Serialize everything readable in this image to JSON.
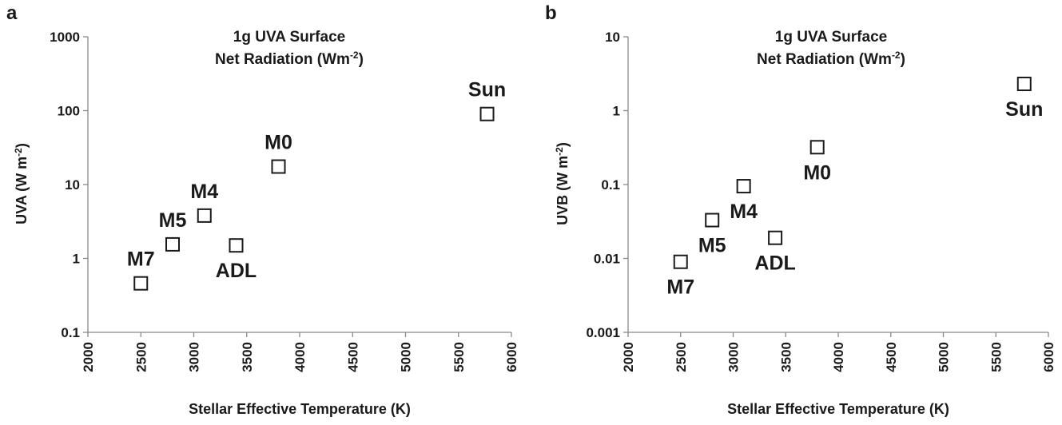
{
  "chart_data": [
    {
      "type": "scatter",
      "panel_letter": "a",
      "title_line1": "1g UVA Surface",
      "title_line2_main": "Net Radiation (Wm",
      "title_line2_sup": "-2",
      "title_line2_end": ")",
      "ylabel_main": "UVA (W m",
      "ylabel_sup": "-2",
      "ylabel_end": ")",
      "xlabel": "Stellar Effective Temperature (K)",
      "xlim": [
        2000,
        6000
      ],
      "ylim": [
        0.1,
        1000
      ],
      "yscale": "log",
      "grid": false,
      "x_ticks": [
        "2000",
        "2500",
        "3000",
        "3500",
        "4000",
        "4500",
        "5000",
        "5500",
        "6000"
      ],
      "y_ticks": [
        "0.1",
        "1",
        "10",
        "100",
        "1000"
      ],
      "points": [
        {
          "label": "M7",
          "x": 2500,
          "y": 0.46,
          "label_pos": "above"
        },
        {
          "label": "M5",
          "x": 2800,
          "y": 1.55,
          "label_pos": "above"
        },
        {
          "label": "M4",
          "x": 3100,
          "y": 3.8,
          "label_pos": "above"
        },
        {
          "label": "ADL",
          "x": 3400,
          "y": 1.5,
          "label_pos": "below"
        },
        {
          "label": "M0",
          "x": 3800,
          "y": 17.5,
          "label_pos": "above"
        },
        {
          "label": "Sun",
          "x": 5770,
          "y": 90,
          "label_pos": "above"
        }
      ]
    },
    {
      "type": "scatter",
      "panel_letter": "b",
      "title_line1": "1g UVA Surface",
      "title_line2_main": "Net Radiation (Wm",
      "title_line2_sup": "-2",
      "title_line2_end": ")",
      "ylabel_main": "UVB (W m",
      "ylabel_sup": "-2",
      "ylabel_end": ")",
      "xlabel": "Stellar Effective Temperature (K)",
      "xlim": [
        2000,
        6000
      ],
      "ylim": [
        0.001,
        10
      ],
      "yscale": "log",
      "grid": false,
      "x_ticks": [
        "2000",
        "2500",
        "3000",
        "3500",
        "4000",
        "4500",
        "5000",
        "5500",
        "6000"
      ],
      "y_ticks": [
        "0.001",
        "0.01",
        "0.1",
        "1",
        "10"
      ],
      "points": [
        {
          "label": "M7",
          "x": 2500,
          "y": 0.009,
          "label_pos": "below"
        },
        {
          "label": "M5",
          "x": 2800,
          "y": 0.033,
          "label_pos": "below"
        },
        {
          "label": "M4",
          "x": 3100,
          "y": 0.095,
          "label_pos": "below"
        },
        {
          "label": "ADL",
          "x": 3400,
          "y": 0.019,
          "label_pos": "below"
        },
        {
          "label": "M0",
          "x": 3800,
          "y": 0.32,
          "label_pos": "below"
        },
        {
          "label": "Sun",
          "x": 5770,
          "y": 2.3,
          "label_pos": "below"
        }
      ]
    }
  ]
}
